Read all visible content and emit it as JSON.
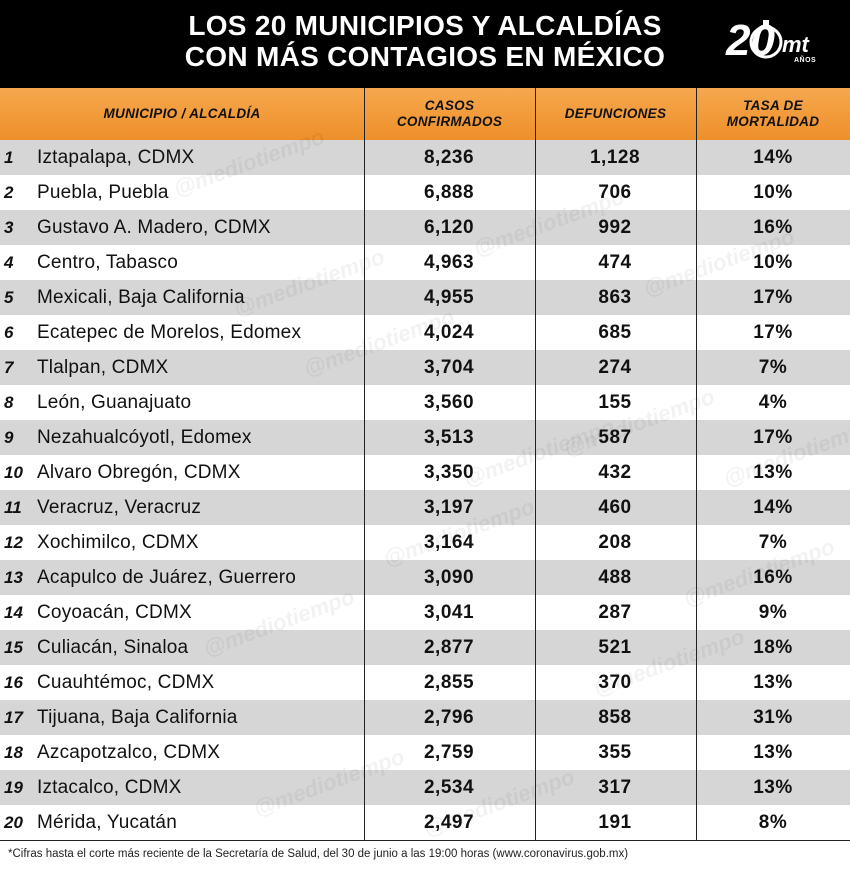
{
  "title": {
    "line1": "LOS 20 MUNICIPIOS Y ALCALDÍAS",
    "line2": "CON MÁS CONTAGIOS EN MÉXICO"
  },
  "logo": {
    "number": "20",
    "brand": "mt",
    "sub": "AÑOS"
  },
  "watermark_text": "@mediotiempo",
  "footnote": "*Cifras hasta el corte más reciente de la Secretaría de Salud, del 30 de junio a las 19:00 horas (www.coronavirus.gob.mx)",
  "colors": {
    "header_orange": "#f0952f",
    "title_bg": "#000000",
    "row_shade": "#d6d6d6"
  },
  "chart_data": {
    "type": "table",
    "columns": [
      "MUNICIPIO / ALCALDÍA",
      "CASOS CONFIRMADOS",
      "DEFUNCIONES",
      "TASA DE MORTALIDAD"
    ],
    "column_lines": [
      [
        "MUNICIPIO / ALCALDÍA"
      ],
      [
        "CASOS",
        "CONFIRMADOS"
      ],
      [
        "DEFUNCIONES"
      ],
      [
        "TASA DE",
        "MORTALIDAD"
      ]
    ],
    "rows": [
      {
        "rank": "1",
        "name": "Iztapalapa, CDMX",
        "cases": "8,236",
        "deaths": "1,128",
        "rate": "14%"
      },
      {
        "rank": "2",
        "name": "Puebla, Puebla",
        "cases": "6,888",
        "deaths": "706",
        "rate": "10%"
      },
      {
        "rank": "3",
        "name": "Gustavo A. Madero, CDMX",
        "cases": "6,120",
        "deaths": "992",
        "rate": "16%"
      },
      {
        "rank": "4",
        "name": "Centro, Tabasco",
        "cases": "4,963",
        "deaths": "474",
        "rate": "10%"
      },
      {
        "rank": "5",
        "name": "Mexicali, Baja California",
        "cases": "4,955",
        "deaths": "863",
        "rate": "17%"
      },
      {
        "rank": "6",
        "name": "Ecatepec de Morelos, Edomex",
        "cases": "4,024",
        "deaths": "685",
        "rate": "17%"
      },
      {
        "rank": "7",
        "name": "Tlalpan, CDMX",
        "cases": "3,704",
        "deaths": "274",
        "rate": "7%"
      },
      {
        "rank": "8",
        "name": "León, Guanajuato",
        "cases": "3,560",
        "deaths": "155",
        "rate": "4%"
      },
      {
        "rank": "9",
        "name": "Nezahualcóyotl, Edomex",
        "cases": "3,513",
        "deaths": "587",
        "rate": "17%"
      },
      {
        "rank": "10",
        "name": "Alvaro Obregón, CDMX",
        "cases": "3,350",
        "deaths": "432",
        "rate": "13%"
      },
      {
        "rank": "11",
        "name": "Veracruz, Veracruz",
        "cases": "3,197",
        "deaths": "460",
        "rate": "14%"
      },
      {
        "rank": "12",
        "name": "Xochimilco, CDMX",
        "cases": "3,164",
        "deaths": "208",
        "rate": "7%"
      },
      {
        "rank": "13",
        "name": "Acapulco de Juárez, Guerrero",
        "cases": "3,090",
        "deaths": "488",
        "rate": "16%"
      },
      {
        "rank": "14",
        "name": "Coyoacán, CDMX",
        "cases": "3,041",
        "deaths": "287",
        "rate": "9%"
      },
      {
        "rank": "15",
        "name": "Culiacán, Sinaloa",
        "cases": "2,877",
        "deaths": "521",
        "rate": "18%"
      },
      {
        "rank": "16",
        "name": "Cuauhtémoc, CDMX",
        "cases": "2,855",
        "deaths": "370",
        "rate": "13%"
      },
      {
        "rank": "17",
        "name": "Tijuana, Baja California",
        "cases": "2,796",
        "deaths": "858",
        "rate": "31%"
      },
      {
        "rank": "18",
        "name": "Azcapotzalco, CDMX",
        "cases": "2,759",
        "deaths": "355",
        "rate": "13%"
      },
      {
        "rank": "19",
        "name": "Iztacalco, CDMX",
        "cases": "2,534",
        "deaths": "317",
        "rate": "13%"
      },
      {
        "rank": "20",
        "name": "Mérida, Yucatán",
        "cases": "2,497",
        "deaths": "191",
        "rate": "8%"
      }
    ]
  }
}
